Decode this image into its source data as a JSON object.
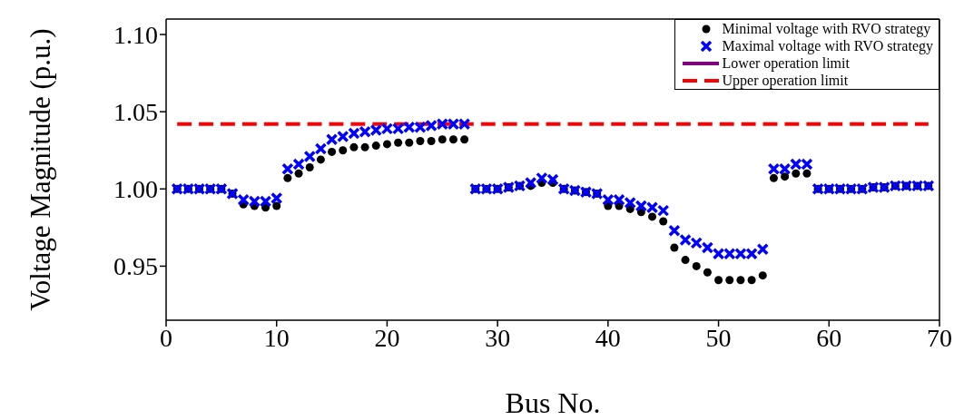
{
  "chart_data": {
    "type": "scatter",
    "xlabel": "Bus No.",
    "ylabel": "Voltage Magnitude (p.u.)",
    "x": [
      1,
      2,
      3,
      4,
      5,
      6,
      7,
      8,
      9,
      10,
      11,
      12,
      13,
      14,
      15,
      16,
      17,
      18,
      19,
      20,
      21,
      22,
      23,
      24,
      25,
      26,
      27,
      28,
      29,
      30,
      31,
      32,
      33,
      34,
      35,
      36,
      37,
      38,
      39,
      40,
      41,
      42,
      43,
      44,
      45,
      46,
      47,
      48,
      49,
      50,
      51,
      52,
      53,
      54,
      55,
      56,
      57,
      58,
      59,
      60,
      61,
      62,
      63,
      64,
      65,
      66,
      67,
      68,
      69
    ],
    "series": [
      {
        "name": "Minimal voltage with RVO strategy",
        "marker": "circle",
        "color": "#000000",
        "values": [
          1.0,
          1.0,
          1.0,
          1.0,
          1.0,
          0.997,
          0.99,
          0.989,
          0.988,
          0.989,
          1.007,
          1.01,
          1.014,
          1.019,
          1.024,
          1.025,
          1.027,
          1.027,
          1.028,
          1.029,
          1.03,
          1.03,
          1.031,
          1.031,
          1.032,
          1.032,
          1.032,
          1.0,
          1.0,
          1.0,
          1.001,
          1.002,
          1.002,
          1.004,
          1.004,
          1.0,
          0.999,
          0.998,
          0.997,
          0.989,
          0.989,
          0.987,
          0.985,
          0.982,
          0.979,
          0.962,
          0.954,
          0.95,
          0.946,
          0.941,
          0.941,
          0.941,
          0.941,
          0.944,
          1.007,
          1.008,
          1.01,
          1.01,
          1.0,
          1.0,
          1.0,
          1.0,
          1.0,
          1.001,
          1.001,
          1.002,
          1.002,
          1.002,
          1.002
        ]
      },
      {
        "name": "Maximal voltage with RVO strategy",
        "marker": "cross",
        "color": "#0000ff",
        "values": [
          1.0,
          1.0,
          1.0,
          1.0,
          1.0,
          0.997,
          0.993,
          0.992,
          0.992,
          0.994,
          1.013,
          1.016,
          1.021,
          1.026,
          1.032,
          1.034,
          1.036,
          1.037,
          1.038,
          1.039,
          1.039,
          1.04,
          1.04,
          1.041,
          1.042,
          1.042,
          1.042,
          1.0,
          1.0,
          1.0,
          1.001,
          1.002,
          1.004,
          1.007,
          1.006,
          1.0,
          0.999,
          0.998,
          0.997,
          0.993,
          0.993,
          0.991,
          0.989,
          0.988,
          0.986,
          0.973,
          0.967,
          0.965,
          0.962,
          0.958,
          0.958,
          0.958,
          0.958,
          0.961,
          1.013,
          1.013,
          1.016,
          1.016,
          1.0,
          1.0,
          1.0,
          1.0,
          1.0,
          1.001,
          1.001,
          1.002,
          1.002,
          1.002,
          1.002
        ]
      },
      {
        "name": "Lower operation limit",
        "type": "line",
        "line_style": "solid",
        "color": "#800080",
        "values": [
          null,
          null,
          null,
          null,
          null,
          null,
          null,
          null,
          null,
          null,
          null,
          null,
          null,
          null,
          null,
          null,
          null,
          null,
          null,
          null,
          null,
          null,
          null,
          null,
          null,
          null,
          null,
          null,
          null,
          null,
          null,
          null,
          null,
          null,
          null,
          null,
          null,
          null,
          null,
          null,
          null,
          null,
          null,
          null,
          null,
          null,
          null,
          null,
          null,
          null,
          null,
          null,
          null,
          null,
          null,
          null,
          null,
          null,
          null,
          null,
          null,
          null,
          null,
          null,
          null,
          null,
          null,
          null,
          null
        ]
      },
      {
        "name": "Upper operation limit",
        "type": "line",
        "line_style": "dashed",
        "color": "#ff0000",
        "x": [
          1,
          69
        ],
        "values": [
          1.042,
          1.042
        ]
      }
    ],
    "xlim": [
      0,
      70
    ],
    "xticks": [
      0,
      10,
      20,
      30,
      40,
      50,
      60,
      70
    ],
    "ylim": [
      0.915,
      1.11
    ],
    "yticks": [
      {
        "value": 0.95,
        "label": "0.95"
      },
      {
        "value": 1.0,
        "label": "1.00"
      },
      {
        "value": 1.05,
        "label": "1.05"
      },
      {
        "value": 1.1,
        "label": "1.10"
      }
    ],
    "grid": false,
    "legend": "top right"
  }
}
